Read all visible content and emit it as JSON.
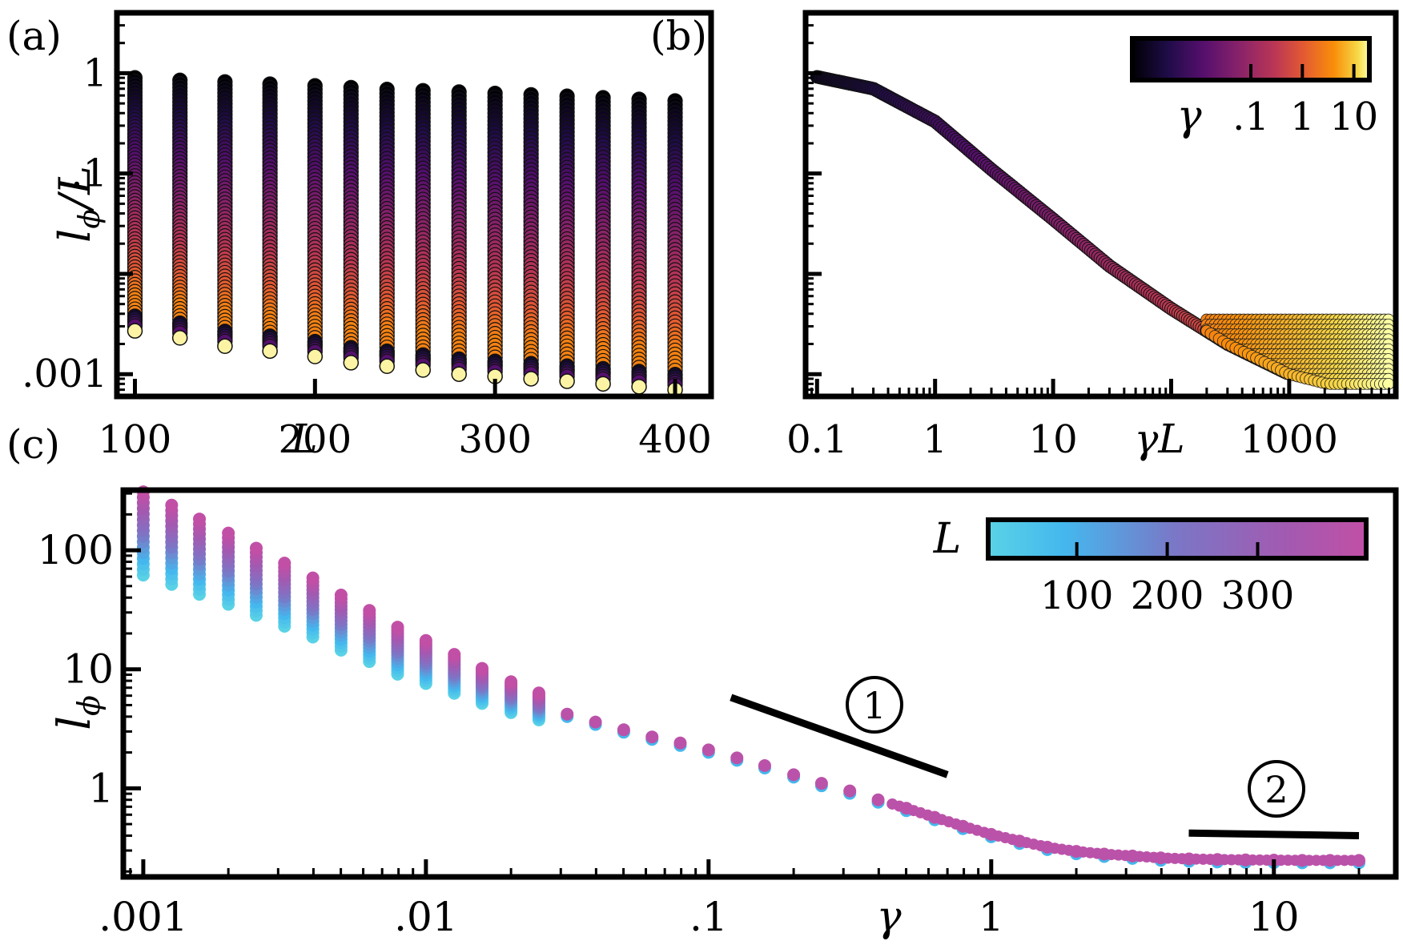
{
  "chart_data": [
    {
      "panel": "(a)",
      "type": "scatter",
      "xlabel": "L",
      "ylabel_main": "l",
      "ylabel_sub": "ϕ",
      "ylabel_tail": "/L",
      "x_scale": "linear",
      "y_scale": "log",
      "xlim": [
        90,
        420
      ],
      "ylim": [
        0.0006,
        4
      ],
      "x_ticks": [
        100,
        200,
        300,
        400
      ],
      "x_ticklabels": [
        "100",
        "200",
        "300",
        "400"
      ],
      "y_ticks": [
        0.001,
        0.1,
        1
      ],
      "y_ticklabels": [
        ".001",
        ".1",
        "1"
      ],
      "x_values": [
        100,
        125,
        150,
        175,
        200,
        220,
        240,
        260,
        280,
        300,
        320,
        340,
        360,
        380,
        400
      ],
      "top_values": [
        0.9,
        0.85,
        0.82,
        0.78,
        0.75,
        0.72,
        0.69,
        0.67,
        0.65,
        0.63,
        0.61,
        0.59,
        0.57,
        0.55,
        0.53
      ],
      "bottom_values": [
        0.0027,
        0.0023,
        0.0019,
        0.0017,
        0.0015,
        0.0013,
        0.0012,
        0.0011,
        0.001,
        0.00095,
        0.0009,
        0.00085,
        0.0008,
        0.00075,
        0.0007
      ],
      "colormap": "inferno"
    },
    {
      "panel": "(b)",
      "type": "scatter",
      "xlabel": "γL",
      "x_scale": "log",
      "y_scale": "log",
      "xlim": [
        0.08,
        8000
      ],
      "ylim": [
        0.0006,
        4
      ],
      "x_ticklabels": [
        "0.1",
        "1",
        "10",
        "1000"
      ],
      "x_ticks": [
        0.1,
        1,
        10,
        1000
      ],
      "curve": {
        "x": [
          0.1,
          0.3,
          1,
          3,
          10,
          30,
          100,
          300,
          1000
        ],
        "y": [
          0.92,
          0.7,
          0.33,
          0.11,
          0.035,
          0.012,
          0.0045,
          0.002,
          0.001
        ]
      },
      "plateau_range_y": [
        0.0008,
        0.0035
      ],
      "colorbar": {
        "label": "γ",
        "ticklabels": [
          ".1",
          "1",
          "10"
        ],
        "ticks": [
          0.1,
          1,
          10
        ],
        "colormap": "inferno"
      }
    },
    {
      "panel": "(c)",
      "type": "scatter",
      "xlabel": "γ",
      "ylabel_main": "l",
      "ylabel_sub": "ϕ",
      "x_scale": "log",
      "y_scale": "log",
      "xlim": [
        0.00085,
        27
      ],
      "ylim": [
        0.18,
        320
      ],
      "x_ticks": [
        0.001,
        0.01,
        0.1,
        1,
        10
      ],
      "x_ticklabels": [
        ".001",
        ".01",
        ".1",
        "1",
        "10"
      ],
      "y_ticks": [
        1,
        10,
        100
      ],
      "y_ticklabels": [
        "1",
        "10",
        "100"
      ],
      "gamma_values": [
        0.001,
        0.00126,
        0.00158,
        0.002,
        0.00251,
        0.00316,
        0.00398,
        0.00501,
        0.00631,
        0.00794,
        0.01,
        0.0126,
        0.0158,
        0.02,
        0.0251,
        0.0316,
        0.0398,
        0.0501,
        0.0631,
        0.0794,
        0.1,
        0.126,
        0.158,
        0.2,
        0.251,
        0.316,
        0.398,
        0.501,
        0.631,
        0.794,
        1,
        1.26,
        1.58,
        2,
        2.51,
        3.16,
        3.98,
        5.01,
        6.31,
        7.94,
        10,
        12.6,
        15.8,
        20
      ],
      "lphi_values": [
        150,
        120,
        95,
        75,
        58,
        45,
        35,
        26,
        20,
        15,
        12,
        9.5,
        7.5,
        6,
        5,
        4.2,
        3.6,
        3.1,
        2.7,
        2.4,
        2.1,
        1.8,
        1.55,
        1.3,
        1.1,
        0.95,
        0.8,
        0.68,
        0.57,
        0.48,
        0.41,
        0.36,
        0.32,
        0.295,
        0.28,
        0.27,
        0.26,
        0.255,
        0.252,
        0.25,
        0.249,
        0.248,
        0.248,
        0.248
      ],
      "spread_until_gamma": 0.03,
      "annotations": [
        {
          "label": "1",
          "line_x": [
            0.12,
            0.7
          ],
          "line_y": [
            5.8,
            1.3
          ]
        },
        {
          "label": "2",
          "line_x": [
            5,
            20
          ],
          "line_y": [
            0.42,
            0.4
          ]
        }
      ],
      "colorbar": {
        "label": "L",
        "ticklabels": [
          "100",
          "200",
          "300"
        ],
        "ticks": [
          100,
          200,
          300
        ],
        "colormap": "cool-magenta"
      }
    }
  ]
}
